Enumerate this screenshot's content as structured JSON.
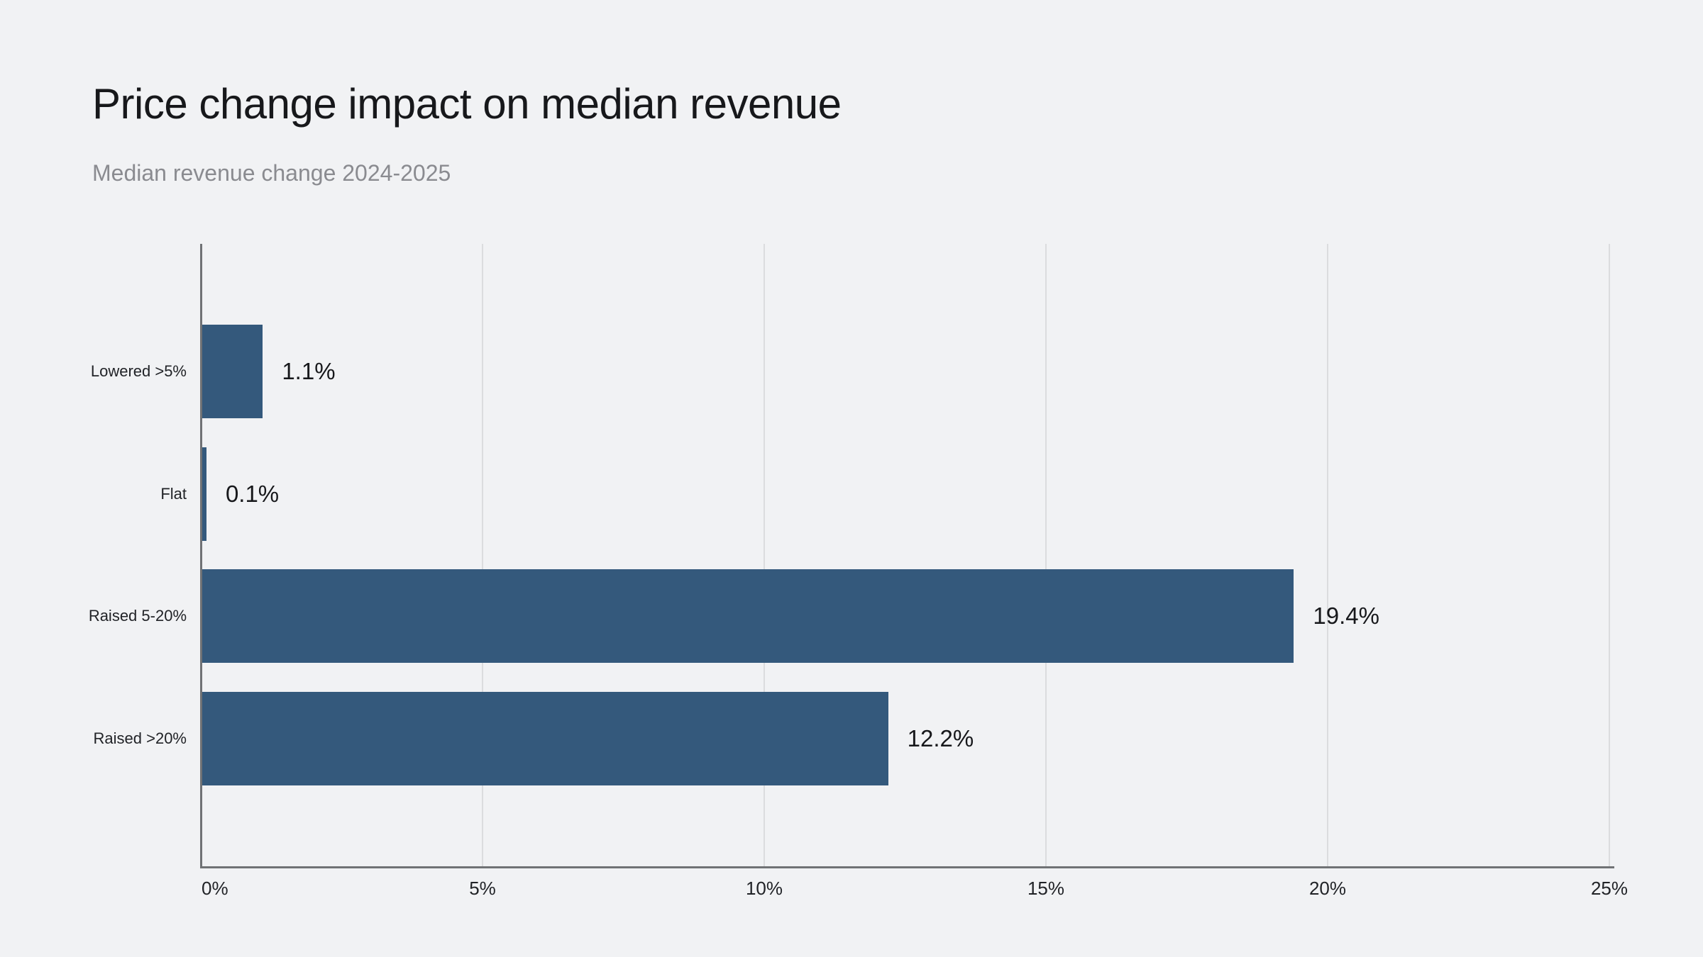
{
  "header": {
    "title": "Price change impact on median revenue",
    "subtitle": "Median revenue change 2024-2025"
  },
  "chart_data": {
    "type": "bar",
    "orientation": "horizontal",
    "title": "Price change impact on median revenue",
    "subtitle": "Median revenue change 2024-2025",
    "categories": [
      "Lowered >5%",
      "Flat",
      "Raised 5-20%",
      "Raised >20%"
    ],
    "values": [
      1.1,
      0.1,
      19.4,
      12.2
    ],
    "value_labels": [
      "1.1%",
      "0.1%",
      "19.4%",
      "12.2%"
    ],
    "xlabel": "",
    "ylabel": "",
    "xlim": [
      0,
      25
    ],
    "x_ticks": [
      0,
      5,
      10,
      15,
      20,
      25
    ],
    "x_tick_labels": [
      "0%",
      "5%",
      "10%",
      "15%",
      "20%",
      "25%"
    ],
    "grid": "vertical",
    "legend": "none",
    "colors": {
      "bar": "#34597C",
      "background": "#F1F2F4",
      "gridline": "#DBDCDE",
      "axis": "#707275",
      "title": "#17181B",
      "subtitle": "#8A8B90",
      "category_label": "#212327",
      "value_label": "#17181B",
      "tick_label": "#212327"
    }
  }
}
